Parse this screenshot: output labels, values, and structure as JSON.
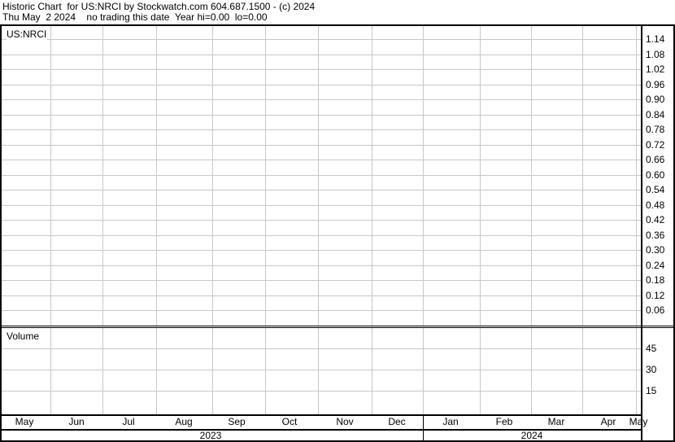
{
  "header": {
    "line1": "Historic Chart  for US:NRCI by Stockwatch.com 604.687.1500 - (c) 2024",
    "line2": "Thu May  2 2024    no trading this date  Year hi=0.00  lo=0.00"
  },
  "chart_data": [
    {
      "type": "line",
      "title": "US:NRCI",
      "y_ticks": [
        "1.14",
        "1.08",
        "1.02",
        "0.96",
        "0.90",
        "0.84",
        "0.78",
        "0.72",
        "0.66",
        "0.60",
        "0.54",
        "0.48",
        "0.42",
        "0.36",
        "0.30",
        "0.24",
        "0.18",
        "0.12",
        "0.06"
      ],
      "ylim": [
        0.06,
        1.14
      ],
      "series": [],
      "grid": true,
      "y_axis_side": "right"
    },
    {
      "type": "bar",
      "title": "Volume",
      "y_ticks": [
        "45",
        "30",
        "15"
      ],
      "series": [],
      "grid": true,
      "y_axis_side": "right"
    }
  ],
  "x_axis": {
    "months": [
      "May",
      "Jun",
      "Jul",
      "Aug",
      "Sep",
      "Oct",
      "Nov",
      "Dec",
      "Jan",
      "Feb",
      "Mar",
      "Apr",
      "May"
    ],
    "years": [
      "2023",
      "2024"
    ]
  },
  "colors": {
    "grid": "#c8c8c8",
    "border": "#000000"
  }
}
